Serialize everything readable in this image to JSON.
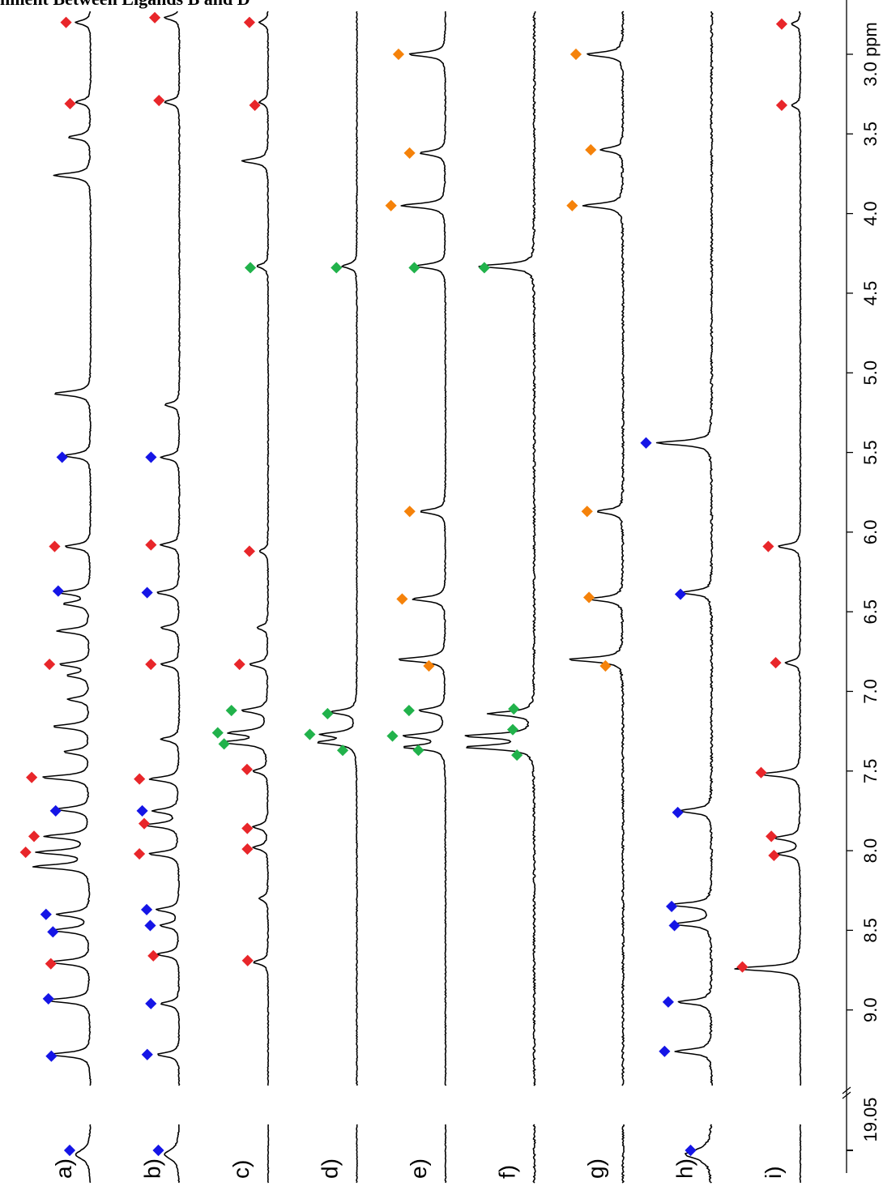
{
  "heading": "nment Between Ligands B and D",
  "colors": {
    "red": "#e8262a",
    "blue": "#1515e6",
    "green": "#21b24b",
    "orange": "#f5820a",
    "trace": "#000000"
  },
  "chart_data": {
    "type": "line",
    "orientation": "rotated-90-ccw",
    "x_axis": {
      "unit": "ppm",
      "range": [
        9.5,
        2.7
      ],
      "reversed": true,
      "ticks": [
        9.0,
        8.5,
        8.0,
        7.5,
        7.0,
        6.5,
        6.0,
        5.5,
        5.0,
        4.5,
        4.0,
        3.5,
        3.0
      ],
      "tick_labels": [
        "9.0",
        "8.5",
        "8.0",
        "7.5",
        "7.0",
        "6.5",
        "6.0",
        "5.5",
        "5.0",
        "4.5",
        "4.0",
        "3.5",
        "3.0 ppm"
      ],
      "break_label": "19.05"
    },
    "series": [
      {
        "name": "a)",
        "peaks": [
          {
            "ppm": 9.28,
            "h": 0.55
          },
          {
            "ppm": 8.94,
            "h": 0.6
          },
          {
            "ppm": 8.7,
            "h": 0.55
          },
          {
            "ppm": 8.5,
            "h": 0.5
          },
          {
            "ppm": 8.4,
            "h": 0.45
          },
          {
            "ppm": 8.1,
            "h": 0.75
          },
          {
            "ppm": 8.01,
            "h": 0.7
          },
          {
            "ppm": 7.91,
            "h": 0.6
          },
          {
            "ppm": 7.74,
            "h": 0.45
          },
          {
            "ppm": 7.54,
            "h": 0.65
          },
          {
            "ppm": 7.38,
            "h": 0.35
          },
          {
            "ppm": 7.22,
            "h": 0.5
          },
          {
            "ppm": 7.05,
            "h": 0.3
          },
          {
            "ppm": 6.9,
            "h": 0.3
          },
          {
            "ppm": 6.83,
            "h": 0.4
          },
          {
            "ppm": 6.62,
            "h": 0.45
          },
          {
            "ppm": 6.45,
            "h": 0.35
          },
          {
            "ppm": 6.38,
            "h": 0.4
          },
          {
            "ppm": 6.09,
            "h": 0.35
          },
          {
            "ppm": 5.52,
            "h": 0.35
          },
          {
            "ppm": 5.13,
            "h": 0.5
          },
          {
            "ppm": 3.76,
            "h": 0.5
          },
          {
            "ppm": 3.52,
            "h": 0.3
          },
          {
            "ppm": 3.3,
            "h": 0.2
          },
          {
            "ppm": 2.8,
            "h": 0.2
          }
        ],
        "markers": [
          {
            "ppm": 9.29,
            "color": "blue"
          },
          {
            "ppm": 8.93,
            "color": "blue"
          },
          {
            "ppm": 8.71,
            "color": "red"
          },
          {
            "ppm": 8.51,
            "color": "blue"
          },
          {
            "ppm": 8.4,
            "color": "blue"
          },
          {
            "ppm": 8.01,
            "color": "red"
          },
          {
            "ppm": 7.91,
            "color": "red"
          },
          {
            "ppm": 7.75,
            "color": "blue"
          },
          {
            "ppm": 7.54,
            "color": "red"
          },
          {
            "ppm": 6.83,
            "color": "red"
          },
          {
            "ppm": 6.37,
            "color": "blue"
          },
          {
            "ppm": 6.09,
            "color": "red"
          },
          {
            "ppm": 5.53,
            "color": "blue"
          },
          {
            "ppm": 3.31,
            "color": "red"
          },
          {
            "ppm": 2.8,
            "color": "red"
          }
        ],
        "offset_marker": "blue"
      },
      {
        "name": "b)",
        "peaks": [
          {
            "ppm": 9.28,
            "h": 0.3
          },
          {
            "ppm": 8.96,
            "h": 0.25
          },
          {
            "ppm": 8.65,
            "h": 0.3
          },
          {
            "ppm": 8.47,
            "h": 0.25
          },
          {
            "ppm": 8.37,
            "h": 0.3
          },
          {
            "ppm": 8.02,
            "h": 0.4
          },
          {
            "ppm": 7.84,
            "h": 0.45
          },
          {
            "ppm": 7.75,
            "h": 0.35
          },
          {
            "ppm": 7.55,
            "h": 0.4
          },
          {
            "ppm": 7.3,
            "h": 0.25
          },
          {
            "ppm": 6.83,
            "h": 0.25
          },
          {
            "ppm": 6.6,
            "h": 0.25
          },
          {
            "ppm": 6.38,
            "h": 0.3
          },
          {
            "ppm": 6.08,
            "h": 0.25
          },
          {
            "ppm": 5.53,
            "h": 0.25
          },
          {
            "ppm": 5.2,
            "h": 0.2
          },
          {
            "ppm": 3.3,
            "h": 0.2
          },
          {
            "ppm": 2.77,
            "h": 0.2
          }
        ],
        "markers": [
          {
            "ppm": 9.28,
            "color": "blue"
          },
          {
            "ppm": 8.96,
            "color": "blue"
          },
          {
            "ppm": 8.66,
            "color": "red"
          },
          {
            "ppm": 8.47,
            "color": "blue"
          },
          {
            "ppm": 8.37,
            "color": "blue"
          },
          {
            "ppm": 8.02,
            "color": "red"
          },
          {
            "ppm": 7.83,
            "color": "red"
          },
          {
            "ppm": 7.75,
            "color": "blue"
          },
          {
            "ppm": 7.55,
            "color": "red"
          },
          {
            "ppm": 6.83,
            "color": "red"
          },
          {
            "ppm": 6.38,
            "color": "blue"
          },
          {
            "ppm": 6.08,
            "color": "red"
          },
          {
            "ppm": 5.53,
            "color": "blue"
          },
          {
            "ppm": 3.29,
            "color": "red"
          },
          {
            "ppm": 2.77,
            "color": "red"
          }
        ],
        "offset_marker": "blue"
      },
      {
        "name": "c)",
        "peaks": [
          {
            "ppm": 8.7,
            "h": 0.2
          },
          {
            "ppm": 8.3,
            "h": 0.12
          },
          {
            "ppm": 7.98,
            "h": 0.2
          },
          {
            "ppm": 7.85,
            "h": 0.2
          },
          {
            "ppm": 7.5,
            "h": 0.2
          },
          {
            "ppm": 7.32,
            "h": 0.6
          },
          {
            "ppm": 7.26,
            "h": 0.5
          },
          {
            "ppm": 7.12,
            "h": 0.35
          },
          {
            "ppm": 6.83,
            "h": 0.25
          },
          {
            "ppm": 6.6,
            "h": 0.15
          },
          {
            "ppm": 6.12,
            "h": 0.12
          },
          {
            "ppm": 4.33,
            "h": 0.15
          },
          {
            "ppm": 3.67,
            "h": 0.35
          },
          {
            "ppm": 3.3,
            "h": 0.12
          },
          {
            "ppm": 2.8,
            "h": 0.12
          }
        ],
        "markers": [
          {
            "ppm": 8.69,
            "color": "red"
          },
          {
            "ppm": 7.99,
            "color": "red"
          },
          {
            "ppm": 7.86,
            "color": "red"
          },
          {
            "ppm": 7.49,
            "color": "red"
          },
          {
            "ppm": 7.33,
            "color": "green"
          },
          {
            "ppm": 7.26,
            "color": "green"
          },
          {
            "ppm": 7.12,
            "color": "green"
          },
          {
            "ppm": 6.83,
            "color": "red"
          },
          {
            "ppm": 6.12,
            "color": "red"
          },
          {
            "ppm": 4.34,
            "color": "green"
          },
          {
            "ppm": 3.32,
            "color": "red"
          },
          {
            "ppm": 2.8,
            "color": "red"
          }
        ]
      },
      {
        "name": "d)",
        "peaks": [
          {
            "ppm": 7.32,
            "h": 0.5
          },
          {
            "ppm": 7.27,
            "h": 0.45
          },
          {
            "ppm": 7.13,
            "h": 0.35
          },
          {
            "ppm": 4.33,
            "h": 0.2
          }
        ],
        "markers": [
          {
            "ppm": 7.37,
            "color": "green"
          },
          {
            "ppm": 7.27,
            "color": "green"
          },
          {
            "ppm": 7.14,
            "color": "green"
          },
          {
            "ppm": 4.34,
            "color": "green"
          }
        ]
      },
      {
        "name": "e)",
        "peaks": [
          {
            "ppm": 7.35,
            "h": 0.55
          },
          {
            "ppm": 7.28,
            "h": 0.55
          },
          {
            "ppm": 7.12,
            "h": 0.35
          },
          {
            "ppm": 6.8,
            "h": 0.65
          },
          {
            "ppm": 6.42,
            "h": 0.45
          },
          {
            "ppm": 5.87,
            "h": 0.35
          },
          {
            "ppm": 4.33,
            "h": 0.4
          },
          {
            "ppm": 3.95,
            "h": 0.6
          },
          {
            "ppm": 3.62,
            "h": 0.35
          },
          {
            "ppm": 3.0,
            "h": 0.5
          }
        ],
        "markers": [
          {
            "ppm": 7.37,
            "color": "green"
          },
          {
            "ppm": 7.28,
            "color": "green"
          },
          {
            "ppm": 7.12,
            "color": "green"
          },
          {
            "ppm": 6.84,
            "color": "orange"
          },
          {
            "ppm": 6.42,
            "color": "orange"
          },
          {
            "ppm": 5.87,
            "color": "orange"
          },
          {
            "ppm": 4.34,
            "color": "green"
          },
          {
            "ppm": 3.95,
            "color": "orange"
          },
          {
            "ppm": 3.62,
            "color": "orange"
          },
          {
            "ppm": 3.0,
            "color": "orange"
          }
        ]
      },
      {
        "name": "f)",
        "peaks": [
          {
            "ppm": 7.35,
            "h": 0.9
          },
          {
            "ppm": 7.28,
            "h": 0.9
          },
          {
            "ppm": 7.14,
            "h": 0.6
          },
          {
            "ppm": 4.33,
            "h": 0.75
          }
        ],
        "markers": [
          {
            "ppm": 7.4,
            "color": "green"
          },
          {
            "ppm": 7.24,
            "color": "green"
          },
          {
            "ppm": 7.11,
            "color": "green"
          },
          {
            "ppm": 4.34,
            "color": "green"
          }
        ]
      },
      {
        "name": "g)",
        "peaks": [
          {
            "ppm": 6.8,
            "h": 0.75
          },
          {
            "ppm": 6.42,
            "h": 0.45
          },
          {
            "ppm": 5.87,
            "h": 0.35
          },
          {
            "ppm": 3.95,
            "h": 0.55
          },
          {
            "ppm": 3.6,
            "h": 0.3
          },
          {
            "ppm": 3.0,
            "h": 0.5
          }
        ],
        "markers": [
          {
            "ppm": 6.84,
            "color": "orange"
          },
          {
            "ppm": 6.41,
            "color": "orange"
          },
          {
            "ppm": 5.87,
            "color": "orange"
          },
          {
            "ppm": 3.95,
            "color": "orange"
          },
          {
            "ppm": 3.6,
            "color": "orange"
          },
          {
            "ppm": 3.0,
            "color": "orange"
          }
        ]
      },
      {
        "name": "h)",
        "peaks": [
          {
            "ppm": 9.26,
            "h": 0.5
          },
          {
            "ppm": 8.95,
            "h": 0.45
          },
          {
            "ppm": 8.46,
            "h": 0.5
          },
          {
            "ppm": 8.34,
            "h": 0.55
          },
          {
            "ppm": 7.75,
            "h": 0.45
          },
          {
            "ppm": 6.38,
            "h": 0.4
          },
          {
            "ppm": 5.44,
            "h": 0.75
          }
        ],
        "markers": [
          {
            "ppm": 9.26,
            "color": "blue"
          },
          {
            "ppm": 8.95,
            "color": "blue"
          },
          {
            "ppm": 8.47,
            "color": "blue"
          },
          {
            "ppm": 8.35,
            "color": "blue"
          },
          {
            "ppm": 7.76,
            "color": "blue"
          },
          {
            "ppm": 6.39,
            "color": "blue"
          },
          {
            "ppm": 5.44,
            "color": "blue"
          }
        ],
        "offset_marker": "blue"
      },
      {
        "name": "i)",
        "peaks": [
          {
            "ppm": 8.74,
            "h": 0.9
          },
          {
            "ppm": 8.02,
            "h": 0.3
          },
          {
            "ppm": 7.92,
            "h": 0.35
          },
          {
            "ppm": 7.52,
            "h": 0.55
          },
          {
            "ppm": 6.82,
            "h": 0.2
          },
          {
            "ppm": 6.09,
            "h": 0.3
          },
          {
            "ppm": 3.32,
            "h": 0.12
          },
          {
            "ppm": 2.81,
            "h": 0.12
          }
        ],
        "markers": [
          {
            "ppm": 8.73,
            "color": "red"
          },
          {
            "ppm": 8.03,
            "color": "red"
          },
          {
            "ppm": 7.91,
            "color": "red"
          },
          {
            "ppm": 7.51,
            "color": "red"
          },
          {
            "ppm": 6.82,
            "color": "red"
          },
          {
            "ppm": 6.09,
            "color": "red"
          },
          {
            "ppm": 3.32,
            "color": "red"
          },
          {
            "ppm": 2.81,
            "color": "red"
          }
        ]
      }
    ]
  }
}
